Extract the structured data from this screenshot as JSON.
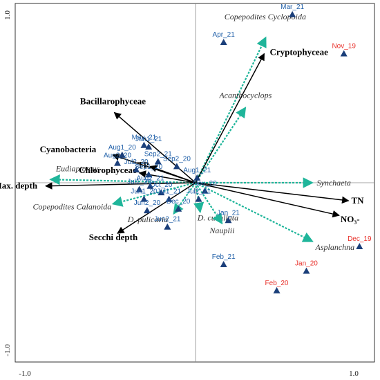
{
  "chart_data": {
    "type": "scatter",
    "title": "",
    "xlabel": "",
    "ylabel": "",
    "xlim": [
      -1.0,
      1.0
    ],
    "ylim": [
      -1.0,
      1.0
    ],
    "x_ticks": [
      "-1.0",
      "1.0"
    ],
    "y_ticks": [
      "1.0",
      "-1.0"
    ],
    "grid": false,
    "colors": {
      "env_arrow": "#000000",
      "species_arrow": "#1fb59a",
      "sample_marker": "#1b3f7a",
      "sample_label_blue": "#1f5fa8",
      "sample_label_red": "#e8302a"
    },
    "environmental_variables": [
      {
        "label": "Cryptophyceae",
        "x": 0.44,
        "y": 0.79
      },
      {
        "label": "Bacillarophyceae",
        "x": -0.52,
        "y": 0.43
      },
      {
        "label": "Cyanobacteria",
        "x": -0.53,
        "y": 0.17
      },
      {
        "label": "TP",
        "x": -0.29,
        "y": 0.1
      },
      {
        "label": "Chlorophyceae",
        "x": -0.36,
        "y": 0.06
      },
      {
        "label": "Max. depth",
        "x": -0.96,
        "y": -0.02
      },
      {
        "label": "Secchi depth",
        "x": -0.5,
        "y": -0.31
      },
      {
        "label": "TN",
        "x": 0.98,
        "y": -0.11
      },
      {
        "label": "NO₃-",
        "x": 0.92,
        "y": -0.2
      }
    ],
    "species": [
      {
        "label": "Copepodites Cyclopoida",
        "x": 0.45,
        "y": 0.89
      },
      {
        "label": "Acanthocyclops",
        "x": 0.32,
        "y": 0.46
      },
      {
        "label": "Eudiaptomus",
        "x": -0.93,
        "y": 0.02
      },
      {
        "label": "Synchaeta",
        "x": 0.75,
        "y": 0.0
      },
      {
        "label": "Copepodites Calanoida",
        "x": -0.53,
        "y": -0.13
      },
      {
        "label": "D. pulicaria",
        "x": -0.14,
        "y": -0.19
      },
      {
        "label": "D. cucullata",
        "x": 0.03,
        "y": -0.18
      },
      {
        "label": "Nauplii",
        "x": 0.17,
        "y": -0.25
      },
      {
        "label": "Asplanchna",
        "x": 0.75,
        "y": -0.36
      }
    ],
    "samples": [
      {
        "label": "Mar_21",
        "x": 0.62,
        "y": 1.03,
        "color": "blue"
      },
      {
        "label": "Apr_21",
        "x": 0.18,
        "y": 0.86,
        "color": "blue"
      },
      {
        "label": "Nov_19",
        "x": 0.95,
        "y": 0.79,
        "color": "red"
      },
      {
        "label": "May_21",
        "x": -0.33,
        "y": 0.23,
        "color": "blue"
      },
      {
        "label": "Jun1_21",
        "x": -0.3,
        "y": 0.22,
        "color": "blue"
      },
      {
        "label": "Aug1_20",
        "x": -0.47,
        "y": 0.17,
        "color": "blue"
      },
      {
        "label": "Aug2_20",
        "x": -0.5,
        "y": 0.12,
        "color": "blue"
      },
      {
        "label": "Sep2_21",
        "x": -0.24,
        "y": 0.13,
        "color": "blue"
      },
      {
        "label": "Sep2_20",
        "x": -0.12,
        "y": 0.1,
        "color": "blue"
      },
      {
        "label": "Jul2_20",
        "x": -0.38,
        "y": 0.08,
        "color": "blue"
      },
      {
        "label": "Sep1_20",
        "x": -0.3,
        "y": 0.05,
        "color": "blue"
      },
      {
        "label": "Aug1_21",
        "x": 0.01,
        "y": 0.03,
        "color": "blue"
      },
      {
        "label": "Aug2_21",
        "x": -0.29,
        "y": -0.02,
        "color": "blue"
      },
      {
        "label": "Jul1_20",
        "x": -0.36,
        "y": -0.04,
        "color": "blue"
      },
      {
        "label": "Oct_20",
        "x": -0.22,
        "y": -0.06,
        "color": "blue"
      },
      {
        "label": "Nov_20",
        "x": 0.06,
        "y": -0.05,
        "color": "blue"
      },
      {
        "label": "Jun1_20",
        "x": -0.33,
        "y": -0.1,
        "color": "blue"
      },
      {
        "label": "Jul1_21",
        "x": -0.17,
        "y": -0.1,
        "color": "blue"
      },
      {
        "label": "Jul2_21",
        "x": 0.02,
        "y": -0.1,
        "color": "blue"
      },
      {
        "label": "Jun2_20",
        "x": -0.31,
        "y": -0.17,
        "color": "blue"
      },
      {
        "label": "Dec_20",
        "x": -0.11,
        "y": -0.16,
        "color": "blue"
      },
      {
        "label": "Jan_21",
        "x": 0.21,
        "y": -0.23,
        "color": "blue"
      },
      {
        "label": "Jun2_21",
        "x": -0.18,
        "y": -0.27,
        "color": "blue"
      },
      {
        "label": "Feb_21",
        "x": 0.18,
        "y": -0.5,
        "color": "blue"
      },
      {
        "label": "Dec_19",
        "x": 1.05,
        "y": -0.39,
        "color": "red"
      },
      {
        "label": "Jan_20",
        "x": 0.71,
        "y": -0.54,
        "color": "red"
      },
      {
        "label": "Feb_20",
        "x": 0.52,
        "y": -0.66,
        "color": "red"
      }
    ]
  }
}
